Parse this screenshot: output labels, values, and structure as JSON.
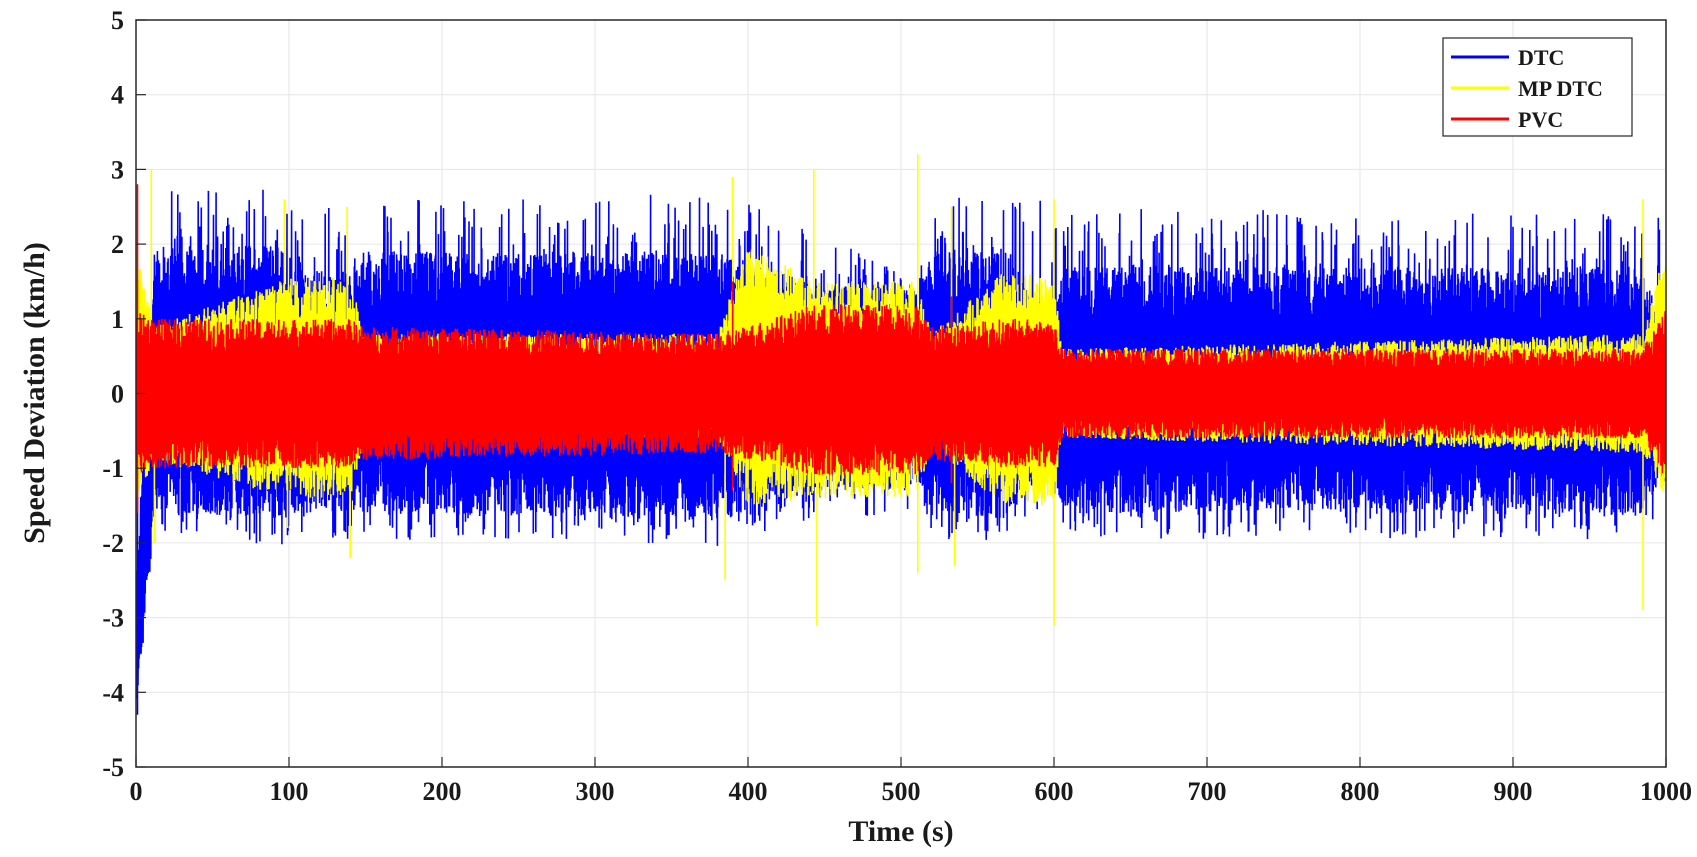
{
  "chart_data": {
    "type": "line",
    "xlabel": "Time (s)",
    "ylabel": "Speed Deviation (km/h)",
    "xlim": [
      0,
      1000
    ],
    "ylim": [
      -5,
      5
    ],
    "xticks": [
      "0",
      "100",
      "200",
      "300",
      "400",
      "500",
      "600",
      "700",
      "800",
      "900",
      "1000"
    ],
    "yticks": [
      "5",
      "4",
      "3",
      "2",
      "1",
      "0",
      "-1",
      "-2",
      "-3",
      "-4",
      "-5"
    ],
    "grid": true,
    "legend_position": "top-right",
    "series": [
      {
        "name": "DTC",
        "color": "#0000ff",
        "envelope": {
          "t": [
            0,
            12,
            95,
            100,
            140,
            150,
            380,
            445,
            510,
            520,
            565,
            600,
            605,
            985,
            1000
          ],
          "upper": [
            -2.5,
            2.0,
            2.0,
            1.65,
            1.65,
            1.9,
            1.9,
            1.45,
            1.45,
            1.9,
            2.0,
            1.0,
            1.7,
            1.7,
            1.0
          ],
          "lower": [
            -4.3,
            -1.6,
            -1.7,
            -1.6,
            -1.6,
            -1.6,
            -1.7,
            -1.3,
            -1.3,
            -1.6,
            -1.7,
            -1.0,
            -1.6,
            -1.6,
            -1.0
          ],
          "spike": [
            2.8,
            2.7,
            2.8,
            2.6,
            2.7,
            2.6,
            2.7,
            2.2,
            1.5,
            2.6,
            2.7,
            2.6,
            2.5,
            2.4,
            2.4
          ]
        },
        "min_value": -4.3
      },
      {
        "name": "MP DTC",
        "color": "#ffff00",
        "envelope": {
          "t": [
            0,
            12,
            100,
            140,
            150,
            380,
            400,
            445,
            510,
            520,
            565,
            600,
            605,
            985,
            1000
          ],
          "upper": [
            2.0,
            0.9,
            1.55,
            1.55,
            0.8,
            0.8,
            2.0,
            1.5,
            1.5,
            0.8,
            1.6,
            1.6,
            0.6,
            0.8,
            2.0
          ],
          "lower": [
            -1.5,
            -0.9,
            -1.4,
            -1.4,
            -0.6,
            -0.6,
            -1.5,
            -1.4,
            -1.4,
            -0.7,
            -1.5,
            -1.5,
            -0.6,
            -0.8,
            -1.4
          ]
        },
        "peaks": [
          [
            10,
            3.0
          ],
          [
            12,
            -2.0
          ],
          [
            97,
            2.6
          ],
          [
            99,
            -1.8
          ],
          [
            138,
            2.5
          ],
          [
            140,
            -2.2
          ],
          [
            390,
            2.9
          ],
          [
            385,
            -2.5
          ],
          [
            443,
            3.0
          ],
          [
            445,
            -3.1
          ],
          [
            511,
            3.2
          ],
          [
            511,
            -2.4
          ],
          [
            533,
            2.5
          ],
          [
            535,
            -2.3
          ],
          [
            600,
            2.6
          ],
          [
            600,
            -3.1
          ],
          [
            985,
            2.6
          ],
          [
            985,
            -2.9
          ]
        ]
      },
      {
        "name": "PVC",
        "color": "#ff0000",
        "envelope": {
          "t": [
            0,
            12,
            100,
            140,
            150,
            380,
            445,
            510,
            520,
            565,
            600,
            605,
            985,
            1000
          ],
          "upper": [
            1.1,
            1.0,
            1.0,
            1.0,
            0.9,
            0.8,
            1.2,
            1.2,
            0.9,
            1.0,
            1.0,
            0.6,
            0.6,
            1.2
          ],
          "lower": [
            -1.1,
            -1.0,
            -1.0,
            -1.0,
            -0.9,
            -0.8,
            -1.1,
            -1.1,
            -0.9,
            -1.0,
            -1.0,
            -0.6,
            -0.6,
            -1.2
          ]
        },
        "peaks": [
          [
            1,
            2.8
          ],
          [
            1,
            -1.6
          ],
          [
            390,
            1.5
          ],
          [
            390,
            -1.3
          ],
          [
            533,
            1.3
          ],
          [
            533,
            -1.2
          ]
        ]
      }
    ]
  }
}
